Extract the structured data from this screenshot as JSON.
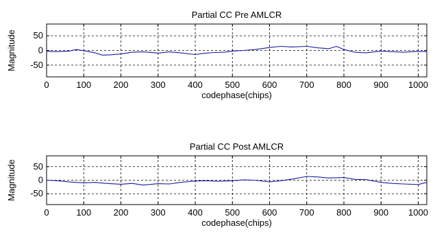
{
  "chart_data": [
    {
      "type": "line",
      "title": "Partial CC Pre AMLCR",
      "xlabel": "codephase(chips)",
      "ylabel": "Magnitude",
      "xlim": [
        0,
        1023
      ],
      "ylim": [
        -90,
        90
      ],
      "grid": true,
      "line_color": "#1a1aa0",
      "xticks": [
        0,
        100,
        200,
        300,
        400,
        500,
        600,
        700,
        800,
        900,
        1000
      ],
      "yticks": [
        -50,
        0,
        50
      ],
      "series": [
        {
          "x": [
            0,
            30,
            60,
            80,
            100,
            130,
            150,
            170,
            200,
            230,
            260,
            300,
            330,
            360,
            400,
            420,
            450,
            480,
            500,
            530,
            560,
            600,
            630,
            660,
            700,
            730,
            760,
            780,
            800,
            830,
            860,
            900,
            930,
            960,
            1000,
            1023
          ],
          "y": [
            -3,
            -4,
            -2,
            3,
            -1,
            -8,
            -16,
            -15,
            -12,
            -6,
            -5,
            -9,
            -5,
            -8,
            -14,
            -10,
            -7,
            -6,
            -2,
            0,
            3,
            10,
            14,
            12,
            14,
            9,
            6,
            14,
            3,
            -6,
            -8,
            -2,
            -4,
            -6,
            -3,
            -4
          ]
        }
      ]
    },
    {
      "type": "line",
      "title": "Partial CC Post AMLCR",
      "xlabel": "codephase(chips)",
      "ylabel": "Magnitude",
      "xlim": [
        0,
        1023
      ],
      "ylim": [
        -90,
        90
      ],
      "grid": true,
      "line_color": "#1a1aa0",
      "xticks": [
        0,
        100,
        200,
        300,
        400,
        500,
        600,
        700,
        800,
        900,
        1000
      ],
      "yticks": [
        -50,
        0,
        50
      ],
      "series": [
        {
          "x": [
            0,
            30,
            60,
            100,
            130,
            160,
            200,
            230,
            260,
            300,
            330,
            360,
            400,
            430,
            460,
            500,
            530,
            560,
            600,
            630,
            660,
            700,
            730,
            760,
            800,
            830,
            860,
            900,
            930,
            960,
            1000,
            1023
          ],
          "y": [
            0,
            -2,
            -6,
            -10,
            -8,
            -12,
            -15,
            -12,
            -18,
            -13,
            -14,
            -8,
            -3,
            -2,
            -4,
            -2,
            1,
            0,
            -6,
            -2,
            4,
            14,
            12,
            8,
            10,
            3,
            2,
            -8,
            -12,
            -14,
            -16,
            -8
          ]
        }
      ]
    }
  ]
}
